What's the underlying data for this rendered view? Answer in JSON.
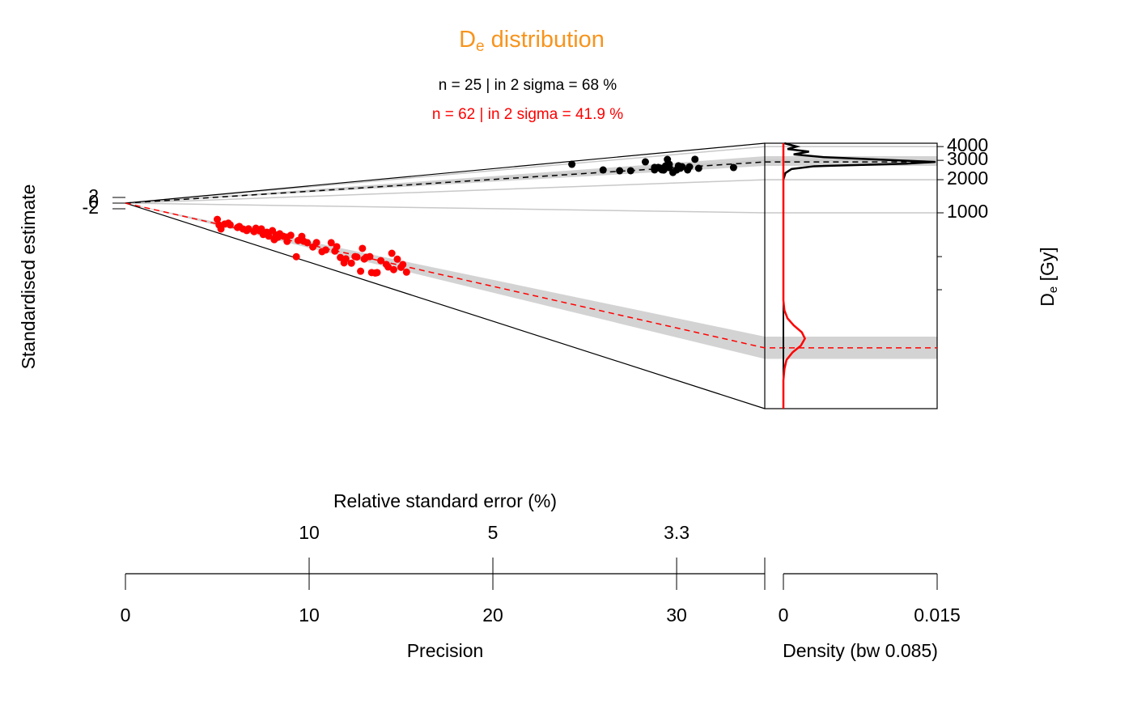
{
  "chart_data": {
    "type": "abanico",
    "title": {
      "text": "D",
      "subscript": "e",
      "suffix": " distribution",
      "color": "#F7941D"
    },
    "y_label": "Standardised estimate",
    "y2_label": {
      "text": "D",
      "subscript": "e",
      "suffix": " [Gy]"
    },
    "x_label": "Precision",
    "x2_label": "Relative standard error (%)",
    "density_label": "Density (bw 0.085)",
    "xlim": [
      0,
      34.8
    ],
    "xticks": [
      0,
      10,
      20,
      30
    ],
    "x2ticks": [
      {
        "value": 10,
        "label": "10"
      },
      {
        "value": 5,
        "label": "5"
      },
      {
        "value": 3.333,
        "label": "3.3"
      }
    ],
    "zticks": [
      -2,
      0,
      2
    ],
    "y2lim": [
      16.6,
      4290
    ],
    "y2ticks": [
      1000,
      2000,
      3000,
      4000
    ],
    "y2minor": [
      200,
      400
    ],
    "log_y2": true,
    "density_lim": [
      0,
      0.015
    ],
    "density_ticks": [
      0,
      0.015
    ],
    "series": [
      {
        "label": "n = 25 | in 2 sigma = 68 %",
        "color": "#000000",
        "central": 2900,
        "band": [
          2670,
          3270
        ],
        "precision": [
          24.3,
          26.0,
          26.9,
          27.5,
          28.3,
          28.8,
          29.0,
          29.2,
          29.4,
          29.5,
          29.6,
          29.8,
          30.1,
          30.3,
          30.7,
          31.0,
          31.2,
          33.1,
          28.8,
          29.1,
          29.3,
          30.0,
          29.6,
          30.6,
          30.2
        ],
        "De": [
          3920,
          3100,
          2940,
          2890,
          3540,
          2840,
          3000,
          2810,
          3080,
          3600,
          2940,
          2590,
          3020,
          2940,
          2900,
          3430,
          2760,
          2680,
          3020,
          2940,
          2790,
          2740,
          3190,
          2700,
          2840
        ],
        "density": {
          "De": [
            4290,
            4000,
            3800,
            3600,
            3400,
            3200,
            3000,
            2900,
            2800,
            2650,
            2500,
            2300,
            2000
          ],
          "values": [
            0.0001,
            0.0013,
            0.0004,
            0.0025,
            0.001,
            0.004,
            0.011,
            0.0148,
            0.012,
            0.003,
            0.0008,
            0.0002,
            0
          ]
        }
      },
      {
        "label": "n = 62 | in 2 sigma = 41.9 %",
        "color": "#FF0000",
        "central": 59.2,
        "band": [
          47,
          75
        ],
        "precision": [
          5.0,
          5.1,
          5.2,
          5.4,
          5.6,
          6.1,
          6.2,
          6.4,
          6.6,
          7.0,
          7.1,
          7.3,
          7.4,
          7.5,
          7.7,
          7.8,
          8.0,
          8.2,
          8.3,
          8.4,
          8.6,
          8.8,
          9.0,
          9.3,
          9.4,
          9.6,
          9.7,
          9.9,
          10.4,
          10.7,
          10.9,
          11.2,
          11.4,
          11.5,
          11.7,
          12.0,
          12.3,
          12.5,
          12.6,
          12.8,
          12.9,
          13.0,
          13.1,
          13.3,
          13.4,
          13.6,
          13.7,
          13.9,
          14.2,
          14.3,
          14.5,
          14.6,
          14.8,
          15.0,
          15.1,
          15.3,
          5.7,
          6.7,
          8.1,
          8.8,
          10.2,
          11.9
        ],
        "De": [
          115,
          53.5,
          32.7,
          72.4,
          90.4,
          66.7,
          78.8,
          64.5,
          59.2,
          63.3,
          93.3,
          77.6,
          96.6,
          58.2,
          77.6,
          56.2,
          100,
          72.4,
          61,
          85.9,
          73.8,
          73.8,
          90.4,
          18.4,
          67.6,
          98.4,
          70.1,
          66.7,
          77.6,
          45.1,
          53.5,
          93.3,
          57.2,
          77.6,
          41.5,
          41.5,
          35,
          54.3,
          54.3,
          25.4,
          95.1,
          53.5,
          60.1,
          65.5,
          28.1,
          29,
          30.5,
          60.1,
          52.6,
          47.4,
          98.4,
          44.4,
          77.6,
          54.3,
          63.3,
          45.9,
          76.2,
          75,
          45.9,
          51.6,
          53.5,
          31.6
        ],
        "density": {
          "De": [
            4290,
            160,
            130,
            110,
            95,
            82,
            72,
            62,
            54,
            46,
            38,
            30,
            16.6
          ],
          "values": [
            0,
            0,
            0.0001,
            0.0004,
            0.001,
            0.0018,
            0.0021,
            0.0017,
            0.0009,
            0.0003,
            0.0001,
            0,
            0
          ]
        }
      }
    ]
  }
}
